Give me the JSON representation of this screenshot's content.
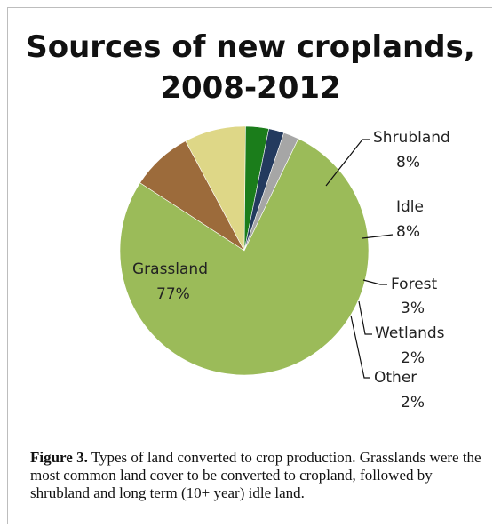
{
  "chart_data": {
    "type": "pie",
    "title_line1": "Sources of new croplands,",
    "title_line2": "2008-2012",
    "slices": [
      {
        "name": "Shrubland",
        "value": 8,
        "label": "8%",
        "color": "#9c6b3b"
      },
      {
        "name": "Idle",
        "value": 8,
        "label": "8%",
        "color": "#ded787"
      },
      {
        "name": "Forest",
        "value": 3,
        "label": "3%",
        "color": "#1b7d1b"
      },
      {
        "name": "Wetlands",
        "value": 2,
        "label": "2%",
        "color": "#233a5e"
      },
      {
        "name": "Other",
        "value": 2,
        "label": "2%",
        "color": "#a6a6a6"
      },
      {
        "name": "Grassland",
        "value": 77,
        "label": "77%",
        "color": "#9bbb59"
      }
    ]
  },
  "caption": {
    "label": "Figure 3.",
    "text": "Types of land converted to crop production. Grasslands were the most common land cover to be converted to cropland, followed by shrubland and long term (10+ year) idle land."
  }
}
